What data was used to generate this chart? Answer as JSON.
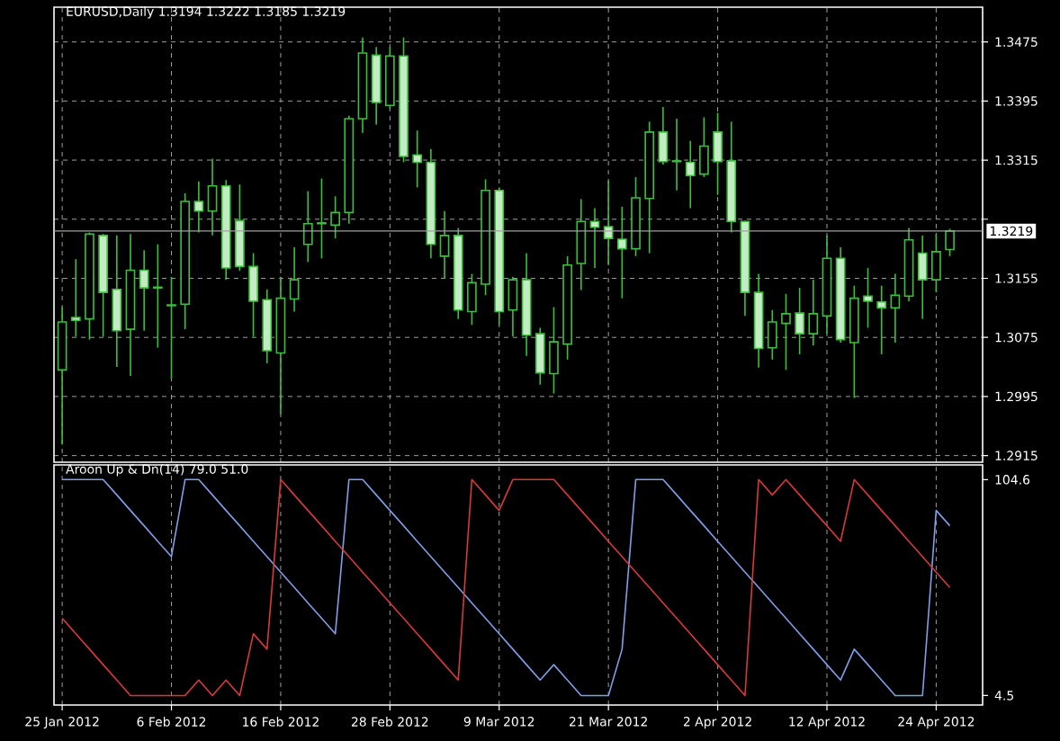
{
  "chart_data": [
    {
      "type": "candlestick",
      "title": "EURUSD,Daily  1.3194 1.3222 1.3185 1.3219",
      "color": "#3cc03c",
      "categories": [
        null,
        null,
        null,
        null,
        null,
        null,
        null,
        null,
        null,
        null,
        null,
        null,
        null,
        null,
        null,
        null,
        null,
        null,
        null,
        null,
        null,
        null,
        null,
        null,
        null,
        null,
        null,
        null,
        null,
        null,
        null,
        null,
        null,
        null,
        null,
        null,
        null,
        null,
        null,
        null,
        null,
        null,
        null,
        null,
        null,
        null,
        null,
        null,
        null,
        null,
        null,
        null,
        null,
        null,
        null,
        null,
        null,
        null,
        null,
        null,
        null,
        null,
        null,
        null,
        null,
        null
      ],
      "ohlc": [
        [
          1.3031,
          1.3116,
          1.293,
          1.3096
        ],
        [
          1.3102,
          1.3181,
          1.3076,
          1.3098
        ],
        [
          1.31,
          1.3217,
          1.3072,
          1.3215
        ],
        [
          1.3213,
          1.3215,
          1.3076,
          1.3136
        ],
        [
          1.314,
          1.3213,
          1.3035,
          1.3084
        ],
        [
          1.3086,
          1.3215,
          1.3023,
          1.3166
        ],
        [
          1.3166,
          1.3193,
          1.3084,
          1.3142
        ],
        [
          1.3143,
          1.3201,
          1.3061,
          1.3142
        ],
        [
          1.3119,
          1.3157,
          1.3019,
          1.3118
        ],
        [
          1.312,
          1.327,
          1.3086,
          1.3259
        ],
        [
          1.3259,
          1.3286,
          1.3217,
          1.3246
        ],
        [
          1.3246,
          1.3317,
          1.3213,
          1.328
        ],
        [
          1.328,
          1.3288,
          1.3153,
          1.3169
        ],
        [
          1.3233,
          1.3282,
          1.3165,
          1.3171
        ],
        [
          1.3171,
          1.3189,
          1.3076,
          1.3124
        ],
        [
          1.3126,
          1.314,
          1.304,
          1.3057
        ],
        [
          1.3054,
          1.3157,
          1.2971,
          1.3128
        ],
        [
          1.3127,
          1.3197,
          1.311,
          1.3153
        ],
        [
          1.3201,
          1.3273,
          1.3177,
          1.3229
        ],
        [
          1.323,
          1.329,
          1.3182,
          1.3229
        ],
        [
          1.3227,
          1.3266,
          1.3209,
          1.3244
        ],
        [
          1.3244,
          1.3375,
          1.3229,
          1.3371
        ],
        [
          1.3371,
          1.3481,
          1.3352,
          1.346
        ],
        [
          1.3457,
          1.3468,
          1.3363,
          1.3393
        ],
        [
          1.3389,
          1.3468,
          1.3385,
          1.3456
        ],
        [
          1.3456,
          1.3481,
          1.3312,
          1.332
        ],
        [
          1.3322,
          1.3355,
          1.3278,
          1.3312
        ],
        [
          1.3312,
          1.333,
          1.3182,
          1.3201
        ],
        [
          1.3185,
          1.3246,
          1.3155,
          1.3213
        ],
        [
          1.3213,
          1.3223,
          1.31,
          1.3112
        ],
        [
          1.311,
          1.3161,
          1.3092,
          1.3149
        ],
        [
          1.3147,
          1.3289,
          1.3132,
          1.3274
        ],
        [
          1.3274,
          1.3278,
          1.3092,
          1.311
        ],
        [
          1.3112,
          1.3157,
          1.3076,
          1.3153
        ],
        [
          1.3153,
          1.3189,
          1.305,
          1.3078
        ],
        [
          1.308,
          1.3088,
          1.3011,
          1.3027
        ],
        [
          1.3026,
          1.3116,
          1.2999,
          1.3069
        ],
        [
          1.3066,
          1.3185,
          1.3045,
          1.3173
        ],
        [
          1.3175,
          1.3262,
          1.3139,
          1.3232
        ],
        [
          1.3232,
          1.325,
          1.3169,
          1.3224
        ],
        [
          1.3225,
          1.3287,
          1.3173,
          1.3209
        ],
        [
          1.3208,
          1.3252,
          1.3128,
          1.3195
        ],
        [
          1.3195,
          1.3292,
          1.3185,
          1.3264
        ],
        [
          1.3263,
          1.3367,
          1.3189,
          1.3353
        ],
        [
          1.3353,
          1.3387,
          1.3309,
          1.3313
        ],
        [
          1.3314,
          1.3371,
          1.3274,
          1.3313
        ],
        [
          1.3312,
          1.3341,
          1.325,
          1.3294
        ],
        [
          1.3296,
          1.3373,
          1.3292,
          1.3334
        ],
        [
          1.3353,
          1.3379,
          1.3268,
          1.3313
        ],
        [
          1.3314,
          1.3367,
          1.3217,
          1.3232
        ],
        [
          1.3232,
          1.3233,
          1.3104,
          1.3136
        ],
        [
          1.3136,
          1.3161,
          1.3034,
          1.306
        ],
        [
          1.3061,
          1.3112,
          1.3045,
          1.3096
        ],
        [
          1.3094,
          1.3134,
          1.3031,
          1.3107
        ],
        [
          1.3108,
          1.3142,
          1.3052,
          1.308
        ],
        [
          1.308,
          1.3153,
          1.3064,
          1.3107
        ],
        [
          1.3104,
          1.3213,
          1.308,
          1.3182
        ],
        [
          1.3182,
          1.3197,
          1.3068,
          1.3072
        ],
        [
          1.3068,
          1.3145,
          1.2993,
          1.3128
        ],
        [
          1.3131,
          1.3169,
          1.3088,
          1.3124
        ],
        [
          1.3123,
          1.3145,
          1.3052,
          1.3115
        ],
        [
          1.3115,
          1.3161,
          1.3068,
          1.3132
        ],
        [
          1.3131,
          1.3223,
          1.3124,
          1.3207
        ],
        [
          1.3189,
          1.3213,
          1.31,
          1.3153
        ],
        [
          1.3153,
          1.3215,
          1.3136,
          1.3191
        ],
        [
          1.3194,
          1.3222,
          1.3185,
          1.3219
        ]
      ],
      "ylim": [
        1.2906,
        1.3522
      ],
      "yticks": [
        1.2915,
        1.2995,
        1.3075,
        1.3155,
        {
          "value": 1.3235,
          "label": null
        },
        1.3315,
        1.3395,
        1.3475
      ],
      "grid": true,
      "tick_labels": "y",
      "ref_lines": [
        {
          "axis": "y",
          "value": 1.3219,
          "label": "1.3219",
          "color": "#a0a0a0"
        }
      ]
    },
    {
      "type": "line",
      "title": "Aroon Up & Dn(14) 79.0 51.0",
      "categories": [
        "25 Jan 2012",
        null,
        null,
        null,
        null,
        null,
        null,
        null,
        "6 Feb 2012",
        null,
        null,
        null,
        null,
        null,
        null,
        null,
        "16 Feb 2012",
        null,
        null,
        null,
        null,
        null,
        null,
        null,
        "28 Feb 2012",
        null,
        null,
        null,
        null,
        null,
        null,
        null,
        "9 Mar 2012",
        null,
        null,
        null,
        null,
        null,
        null,
        null,
        "21 Mar 2012",
        null,
        null,
        null,
        null,
        null,
        null,
        null,
        "2 Apr 2012",
        null,
        null,
        null,
        null,
        null,
        null,
        null,
        "12 Apr 2012",
        null,
        null,
        null,
        null,
        null,
        null,
        null,
        "24 Apr 2012",
        null
      ],
      "series": [
        {
          "color": "#7f9fe6",
          "values": [
            104.6,
            104.6,
            104.6,
            104.6,
            97.5,
            90.3,
            83.2,
            76.0,
            68.9,
            104.6,
            104.6,
            97.5,
            90.3,
            83.2,
            76.0,
            68.9,
            61.7,
            54.6,
            47.4,
            40.3,
            33.1,
            104.6,
            104.6,
            97.5,
            90.3,
            83.2,
            76.0,
            68.9,
            61.7,
            54.6,
            47.4,
            40.3,
            33.1,
            26.0,
            18.8,
            11.7,
            18.8,
            11.7,
            4.5,
            4.5,
            4.5,
            26.0,
            104.6,
            104.6,
            104.6,
            97.5,
            90.3,
            83.2,
            76.0,
            68.9,
            61.7,
            54.6,
            47.4,
            40.3,
            33.1,
            26.0,
            18.8,
            11.7,
            26.0,
            18.8,
            11.7,
            4.5,
            4.5,
            4.5,
            90.3,
            83.2
          ]
        },
        {
          "color": "#d83a3a",
          "values": [
            40.3,
            33.1,
            26.0,
            18.8,
            11.7,
            4.5,
            4.5,
            4.5,
            4.5,
            4.5,
            11.7,
            4.5,
            11.7,
            4.5,
            33.1,
            26.0,
            104.6,
            97.5,
            90.3,
            83.2,
            76.0,
            68.9,
            61.7,
            54.6,
            47.4,
            40.3,
            33.1,
            26.0,
            18.8,
            11.7,
            104.6,
            97.5,
            90.3,
            104.6,
            104.6,
            104.6,
            104.6,
            97.5,
            90.3,
            83.2,
            76.0,
            68.9,
            61.7,
            54.6,
            47.4,
            40.3,
            33.1,
            26.0,
            18.8,
            11.7,
            4.5,
            104.6,
            97.5,
            104.6,
            97.5,
            90.3,
            83.2,
            76.0,
            104.6,
            97.5,
            90.3,
            83.2,
            76.0,
            68.9,
            61.7,
            54.6
          ]
        }
      ],
      "ylim": [
        0.1,
        111.4
      ],
      "yticks": [
        104.6,
        4.5
      ],
      "grid": "x"
    }
  ]
}
